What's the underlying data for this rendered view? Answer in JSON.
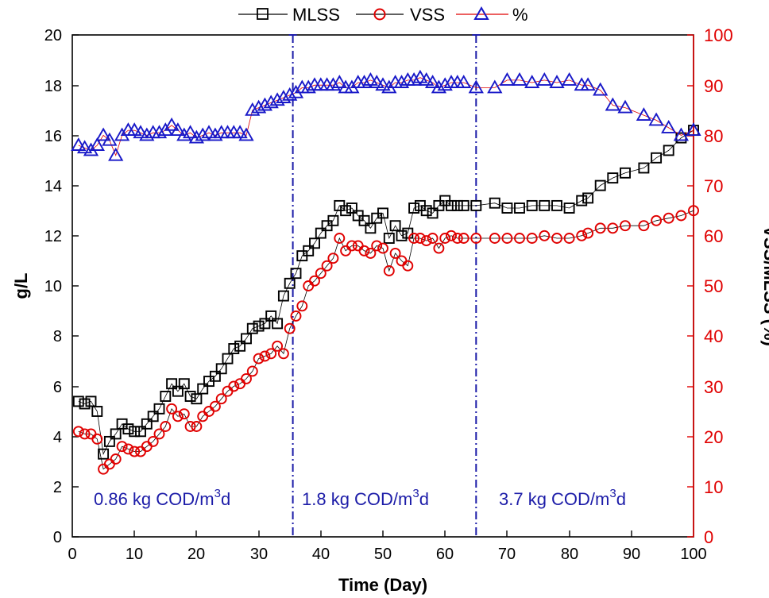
{
  "chart_data": {
    "type": "scatter",
    "title": "",
    "xlabel": "Time (Day)",
    "ylabel": "g/L",
    "y2label": "VSS/MLSS (%)",
    "xlim": [
      0,
      100
    ],
    "ylim": [
      0,
      20
    ],
    "y2lim": [
      0,
      100
    ],
    "x_ticks": [
      "0",
      "10",
      "20",
      "30",
      "40",
      "50",
      "60",
      "70",
      "80",
      "90",
      "100"
    ],
    "y_ticks": [
      "0",
      "2",
      "4",
      "6",
      "8",
      "10",
      "12",
      "14",
      "16",
      "18",
      "20"
    ],
    "y2_ticks": [
      "0",
      "10",
      "20",
      "30",
      "40",
      "50",
      "60",
      "70",
      "80",
      "90",
      "100"
    ],
    "grid": false,
    "legend": {
      "position": "top-center",
      "entries": [
        "MLSS",
        "VSS",
        "%"
      ]
    },
    "colors": {
      "mlss": "#000000",
      "vss": "#e00000",
      "percent": "#1818c8",
      "period": "#1c1ca8",
      "right_axis": "#e00000"
    },
    "series": [
      {
        "name": "MLSS",
        "axis": "left",
        "marker": "square",
        "x": [
          1,
          2,
          3,
          4,
          5,
          6,
          7,
          8,
          9,
          10,
          11,
          12,
          13,
          14,
          15,
          16,
          17,
          18,
          19,
          20,
          21,
          22,
          23,
          24,
          25,
          26,
          27,
          28,
          29,
          30,
          31,
          32,
          33,
          34,
          35,
          36,
          37,
          38,
          39,
          40,
          41,
          42,
          43,
          44,
          45,
          46,
          47,
          48,
          49,
          50,
          51,
          52,
          53,
          54,
          55,
          56,
          57,
          58,
          59,
          60,
          61,
          62,
          63,
          65,
          68,
          70,
          72,
          74,
          76,
          78,
          80,
          82,
          83,
          85,
          87,
          89,
          92,
          94,
          96,
          98,
          100
        ],
        "values": [
          5.4,
          5.3,
          5.4,
          5.0,
          3.3,
          3.8,
          4.1,
          4.5,
          4.3,
          4.2,
          4.2,
          4.5,
          4.8,
          5.1,
          5.6,
          6.1,
          5.8,
          6.1,
          5.6,
          5.5,
          5.9,
          6.2,
          6.4,
          6.7,
          7.1,
          7.5,
          7.6,
          7.9,
          8.3,
          8.4,
          8.5,
          8.8,
          8.5,
          9.6,
          10.1,
          10.5,
          11.2,
          11.4,
          11.7,
          12.1,
          12.4,
          12.6,
          13.2,
          13.0,
          13.1,
          12.8,
          12.6,
          12.3,
          12.7,
          12.9,
          11.9,
          12.4,
          12.0,
          12.1,
          13.1,
          13.2,
          13.0,
          12.9,
          13.2,
          13.4,
          13.2,
          13.2,
          13.2,
          13.2,
          13.3,
          13.1,
          13.1,
          13.2,
          13.2,
          13.2,
          13.1,
          13.4,
          13.5,
          14.0,
          14.3,
          14.5,
          14.7,
          15.1,
          15.4,
          15.9,
          16.2
        ]
      },
      {
        "name": "VSS",
        "axis": "left",
        "marker": "circle",
        "x": [
          1,
          2,
          3,
          4,
          5,
          6,
          7,
          8,
          9,
          10,
          11,
          12,
          13,
          14,
          15,
          16,
          17,
          18,
          19,
          20,
          21,
          22,
          23,
          24,
          25,
          26,
          27,
          28,
          29,
          30,
          31,
          32,
          33,
          34,
          35,
          36,
          37,
          38,
          39,
          40,
          41,
          42,
          43,
          44,
          45,
          46,
          47,
          48,
          49,
          50,
          51,
          52,
          53,
          54,
          55,
          56,
          57,
          58,
          59,
          60,
          61,
          62,
          63,
          65,
          68,
          70,
          72,
          74,
          76,
          78,
          80,
          82,
          83,
          85,
          87,
          89,
          92,
          94,
          96,
          98,
          100
        ],
        "values": [
          4.2,
          4.1,
          4.1,
          3.9,
          2.7,
          2.9,
          3.1,
          3.6,
          3.5,
          3.4,
          3.4,
          3.6,
          3.8,
          4.1,
          4.4,
          5.1,
          4.8,
          4.9,
          4.4,
          4.4,
          4.8,
          5.0,
          5.2,
          5.5,
          5.8,
          6.0,
          6.1,
          6.3,
          6.6,
          7.1,
          7.2,
          7.3,
          7.6,
          7.3,
          8.3,
          8.8,
          9.2,
          10.0,
          10.2,
          10.5,
          10.8,
          11.1,
          11.9,
          11.4,
          11.6,
          11.6,
          11.4,
          11.3,
          11.6,
          11.5,
          10.6,
          11.3,
          11.0,
          10.8,
          11.9,
          11.9,
          11.8,
          11.9,
          11.5,
          11.9,
          12.0,
          11.9,
          11.9,
          11.9,
          11.9,
          11.9,
          11.9,
          11.9,
          12.0,
          11.9,
          11.9,
          12.0,
          12.1,
          12.3,
          12.3,
          12.4,
          12.4,
          12.6,
          12.7,
          12.8,
          13.0
        ]
      },
      {
        "name": "%",
        "axis": "right",
        "marker": "triangle",
        "x": [
          1,
          2,
          3,
          4,
          5,
          6,
          7,
          8,
          9,
          10,
          11,
          12,
          13,
          14,
          15,
          16,
          17,
          18,
          19,
          20,
          21,
          22,
          23,
          24,
          25,
          26,
          27,
          28,
          29,
          30,
          31,
          32,
          33,
          34,
          35,
          36,
          37,
          38,
          39,
          40,
          41,
          42,
          43,
          44,
          45,
          46,
          47,
          48,
          49,
          50,
          51,
          52,
          53,
          54,
          55,
          56,
          57,
          58,
          59,
          60,
          61,
          62,
          63,
          65,
          68,
          70,
          72,
          74,
          76,
          78,
          80,
          82,
          83,
          85,
          87,
          89,
          92,
          94,
          96,
          98,
          100
        ],
        "values": [
          78,
          77.5,
          77,
          78,
          80,
          79,
          76,
          80,
          81,
          81,
          80.5,
          80,
          80.5,
          80.5,
          81,
          82,
          81,
          80,
          80.5,
          79.5,
          80,
          80.5,
          80,
          80.5,
          80.5,
          80.5,
          80.5,
          80,
          85,
          85.5,
          86,
          86.5,
          87,
          87.5,
          88,
          88.5,
          89.5,
          89.5,
          90,
          90,
          90,
          90,
          90.5,
          89.5,
          89.5,
          90.5,
          90.5,
          91,
          90.5,
          90,
          89.5,
          90.5,
          90.5,
          91,
          91,
          91.5,
          91,
          90.5,
          89.5,
          90,
          90.5,
          90.5,
          90.5,
          89.5,
          89.5,
          91,
          91,
          90.5,
          91,
          90.5,
          91,
          90,
          90,
          89,
          86,
          85.5,
          84,
          83,
          81.5,
          80,
          81
        ]
      }
    ],
    "annotations": [
      {
        "text": "0.86 kg COD/m",
        "sup": "3",
        "tail": "d"
      },
      {
        "text": "1.8 kg COD/m",
        "sup": "3",
        "tail": "d"
      },
      {
        "text": "3.7 kg COD/m",
        "sup": "3",
        "tail": "d"
      }
    ],
    "period_dividers": [
      35.5,
      65
    ]
  }
}
